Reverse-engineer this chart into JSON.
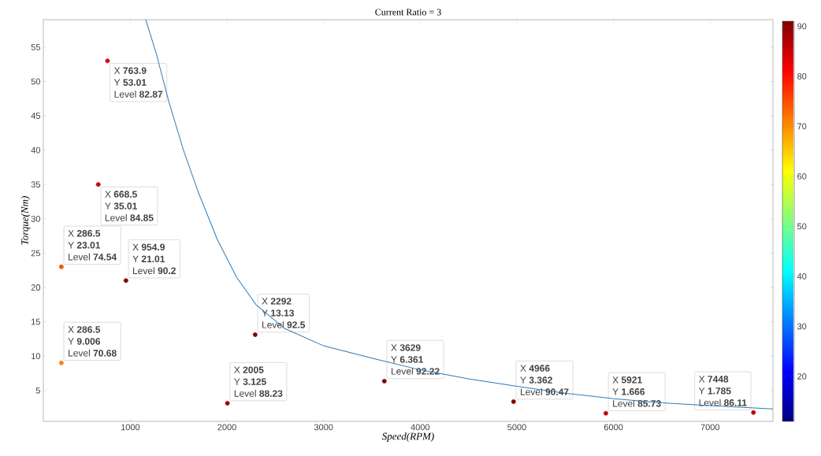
{
  "chart_data": {
    "type": "scatter",
    "title": "Current Ratio = 3",
    "xlabel": "Speed(RPM)",
    "ylabel": "Torque(Nm)",
    "xlim": [
      100,
      7650
    ],
    "ylim": [
      0.5,
      59
    ],
    "xticks": [
      1000,
      2000,
      3000,
      4000,
      5000,
      6000,
      7000
    ],
    "yticks": [
      5,
      10,
      15,
      20,
      25,
      30,
      35,
      40,
      45,
      50,
      55
    ],
    "clim": [
      11,
      91
    ],
    "cticks": [
      20,
      30,
      40,
      50,
      60,
      70,
      80,
      90
    ],
    "grid": false,
    "series": [
      {
        "type": "line",
        "color": "#2b7bba",
        "x": [
          1160,
          1270,
          1400,
          1550,
          1700,
          1900,
          2100,
          2300,
          2600,
          3000,
          3500,
          4000,
          4500,
          5000,
          5500,
          6000,
          6500,
          7000,
          7650
        ],
        "values": [
          59,
          54,
          47,
          40,
          34,
          27,
          21.5,
          17.5,
          14,
          11.5,
          9.7,
          8,
          6.7,
          5.6,
          4.6,
          3.8,
          3.2,
          2.8,
          2.3
        ]
      },
      {
        "marker": "circle",
        "color": "#d9d9d9",
        "x": [
          763.9,
          668.5,
          286.5,
          954.9,
          286.5,
          2292,
          2005,
          3629,
          4966,
          5921,
          7448
        ],
        "values": [
          53.01,
          35.01,
          23.01,
          21.01,
          9.006,
          13.13,
          3.125,
          6.361,
          3.362,
          1.666,
          1.785
        ],
        "cvalues": [
          82.87,
          84.85,
          74.54,
          90.2,
          70.68,
          92.5,
          88.23,
          92.22,
          90.47,
          85.73,
          86.11
        ]
      }
    ],
    "annotations": [
      "X **763.9**",
      "Y **53.01**",
      "Level **82.87**",
      "X **668.5**",
      "Y **35.01**",
      "Level **84.85**",
      "X **286.5**",
      "Y **23.01**",
      "Level **74.54**",
      "X **954.9**",
      "Y **21.01**",
      "Level **90.2**",
      "X **286.5**",
      "Y **9.006**",
      "Level **70.68**",
      "X **2292**",
      "Y **13.13**",
      "Level **92.5**",
      "X **2005**",
      "Y **3.125**",
      "Level **88.23**",
      "X **3629**",
      "Y **6.361**",
      "Level **92.22**",
      "X **4966**",
      "Y **3.362**",
      "Level **90.47**",
      "X **5921**",
      "Y **1.666**",
      "Level **85.73**",
      "X **7448**",
      "Y **1.785**",
      "Level **86.11**"
    ]
  }
}
